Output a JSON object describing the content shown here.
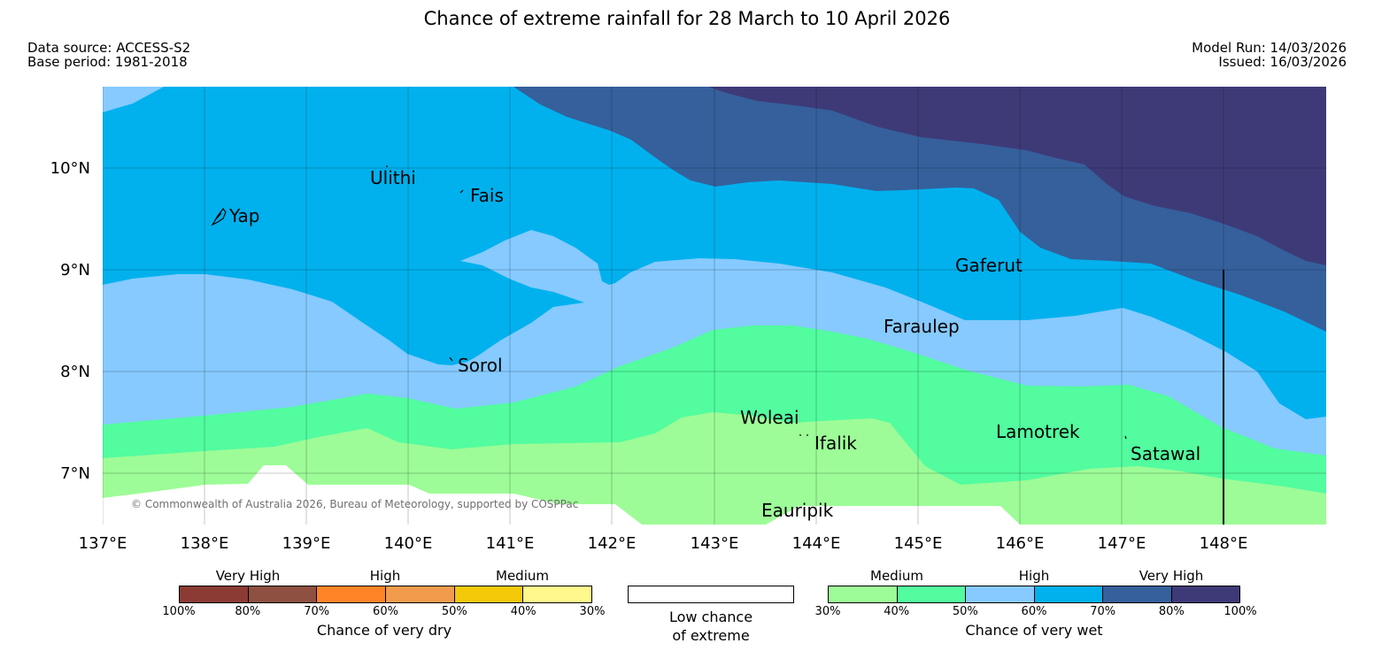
{
  "title": "Chance of extreme rainfall for 28 March to 10 April 2026",
  "meta": {
    "data_source": "Data source: ACCESS-S2",
    "base_period": "Base period: 1981-2018",
    "model_run": "Model Run: 14/03/2026",
    "issued": "Issued: 16/03/2026"
  },
  "map": {
    "attribution": "© Commonwealth of Australia 2026, Bureau of Meteorology, supported by COSPPac",
    "lon_labels": [
      "137°E",
      "138°E",
      "139°E",
      "140°E",
      "141°E",
      "142°E",
      "143°E",
      "144°E",
      "145°E",
      "146°E",
      "147°E",
      "148°E"
    ],
    "lat_labels": [
      "10°N",
      "9°N",
      "8°N",
      "7°N"
    ],
    "places": [
      {
        "name": "Yap",
        "id": "yap"
      },
      {
        "name": "Ulithi",
        "id": "ulithi"
      },
      {
        "name": "Fais",
        "id": "fais"
      },
      {
        "name": "Sorol",
        "id": "sorol"
      },
      {
        "name": "Gaferut",
        "id": "gaferut"
      },
      {
        "name": "Faraulep",
        "id": "faraulep"
      },
      {
        "name": "Woleai",
        "id": "woleai"
      },
      {
        "name": "Ifalik",
        "id": "ifalik"
      },
      {
        "name": "Lamotrek",
        "id": "lamotrek"
      },
      {
        "name": "Satawal",
        "id": "satawal"
      },
      {
        "name": "Eauripik",
        "id": "eauripik"
      }
    ],
    "colors": {
      "low": "#ffffff",
      "wet_30_40": "#9dfc97",
      "wet_40_50": "#52fc9f",
      "wet_50_60": "#86caff",
      "wet_60_70": "#00b1ed",
      "wet_70_80": "#35609c",
      "wet_80_100": "#3e3a78"
    }
  },
  "legend": {
    "dry": {
      "categories": [
        "Very High",
        "High",
        "Medium"
      ],
      "colors": [
        "#8b3b34",
        "#8e5040",
        "#ff8427",
        "#f19b4d",
        "#f3c90a",
        "#fff98d"
      ],
      "ticks": [
        "100%",
        "80%",
        "70%",
        "60%",
        "50%",
        "40%",
        "30%"
      ],
      "caption": "Chance of very dry"
    },
    "low": {
      "color": "#ffffff",
      "line1": "Low chance",
      "line2": "of extreme"
    },
    "wet": {
      "categories": [
        "Medium",
        "High",
        "Very High"
      ],
      "colors": [
        "#9dfc97",
        "#52fc9f",
        "#86caff",
        "#00b1ed",
        "#35609c",
        "#3e3a78"
      ],
      "ticks": [
        "30%",
        "40%",
        "50%",
        "60%",
        "70%",
        "80%",
        "100%"
      ],
      "caption": "Chance of very wet"
    }
  }
}
